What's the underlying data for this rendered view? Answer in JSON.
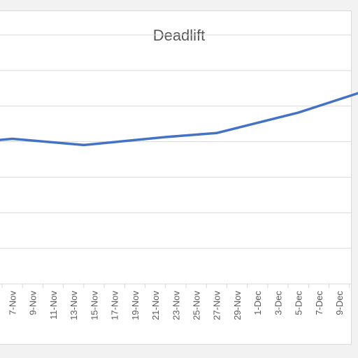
{
  "chart_data": {
    "type": "line",
    "title": "Deadlift",
    "xlabel": "",
    "ylabel": "",
    "categories": [
      "7-Nov",
      "9-Nov",
      "11-Nov",
      "13-Nov",
      "15-Nov",
      "17-Nov",
      "19-Nov",
      "21-Nov",
      "23-Nov",
      "25-Nov",
      "27-Nov",
      "29-Nov",
      "1-Dec",
      "3-Dec",
      "5-Dec",
      "7-Dec",
      "9-Dec"
    ],
    "series": [
      {
        "x": [
          "5-Nov",
          "7-Nov",
          "14-Nov",
          "22-Nov",
          "27-Nov",
          "5-Dec",
          "11-Dec"
        ],
        "values": [
          0.575,
          0.583,
          0.558,
          0.59,
          0.606,
          0.688,
          0.768
        ],
        "color": "#4472c4"
      }
    ],
    "ylim": [
      0,
      1
    ],
    "grid": true,
    "legend": "none"
  }
}
